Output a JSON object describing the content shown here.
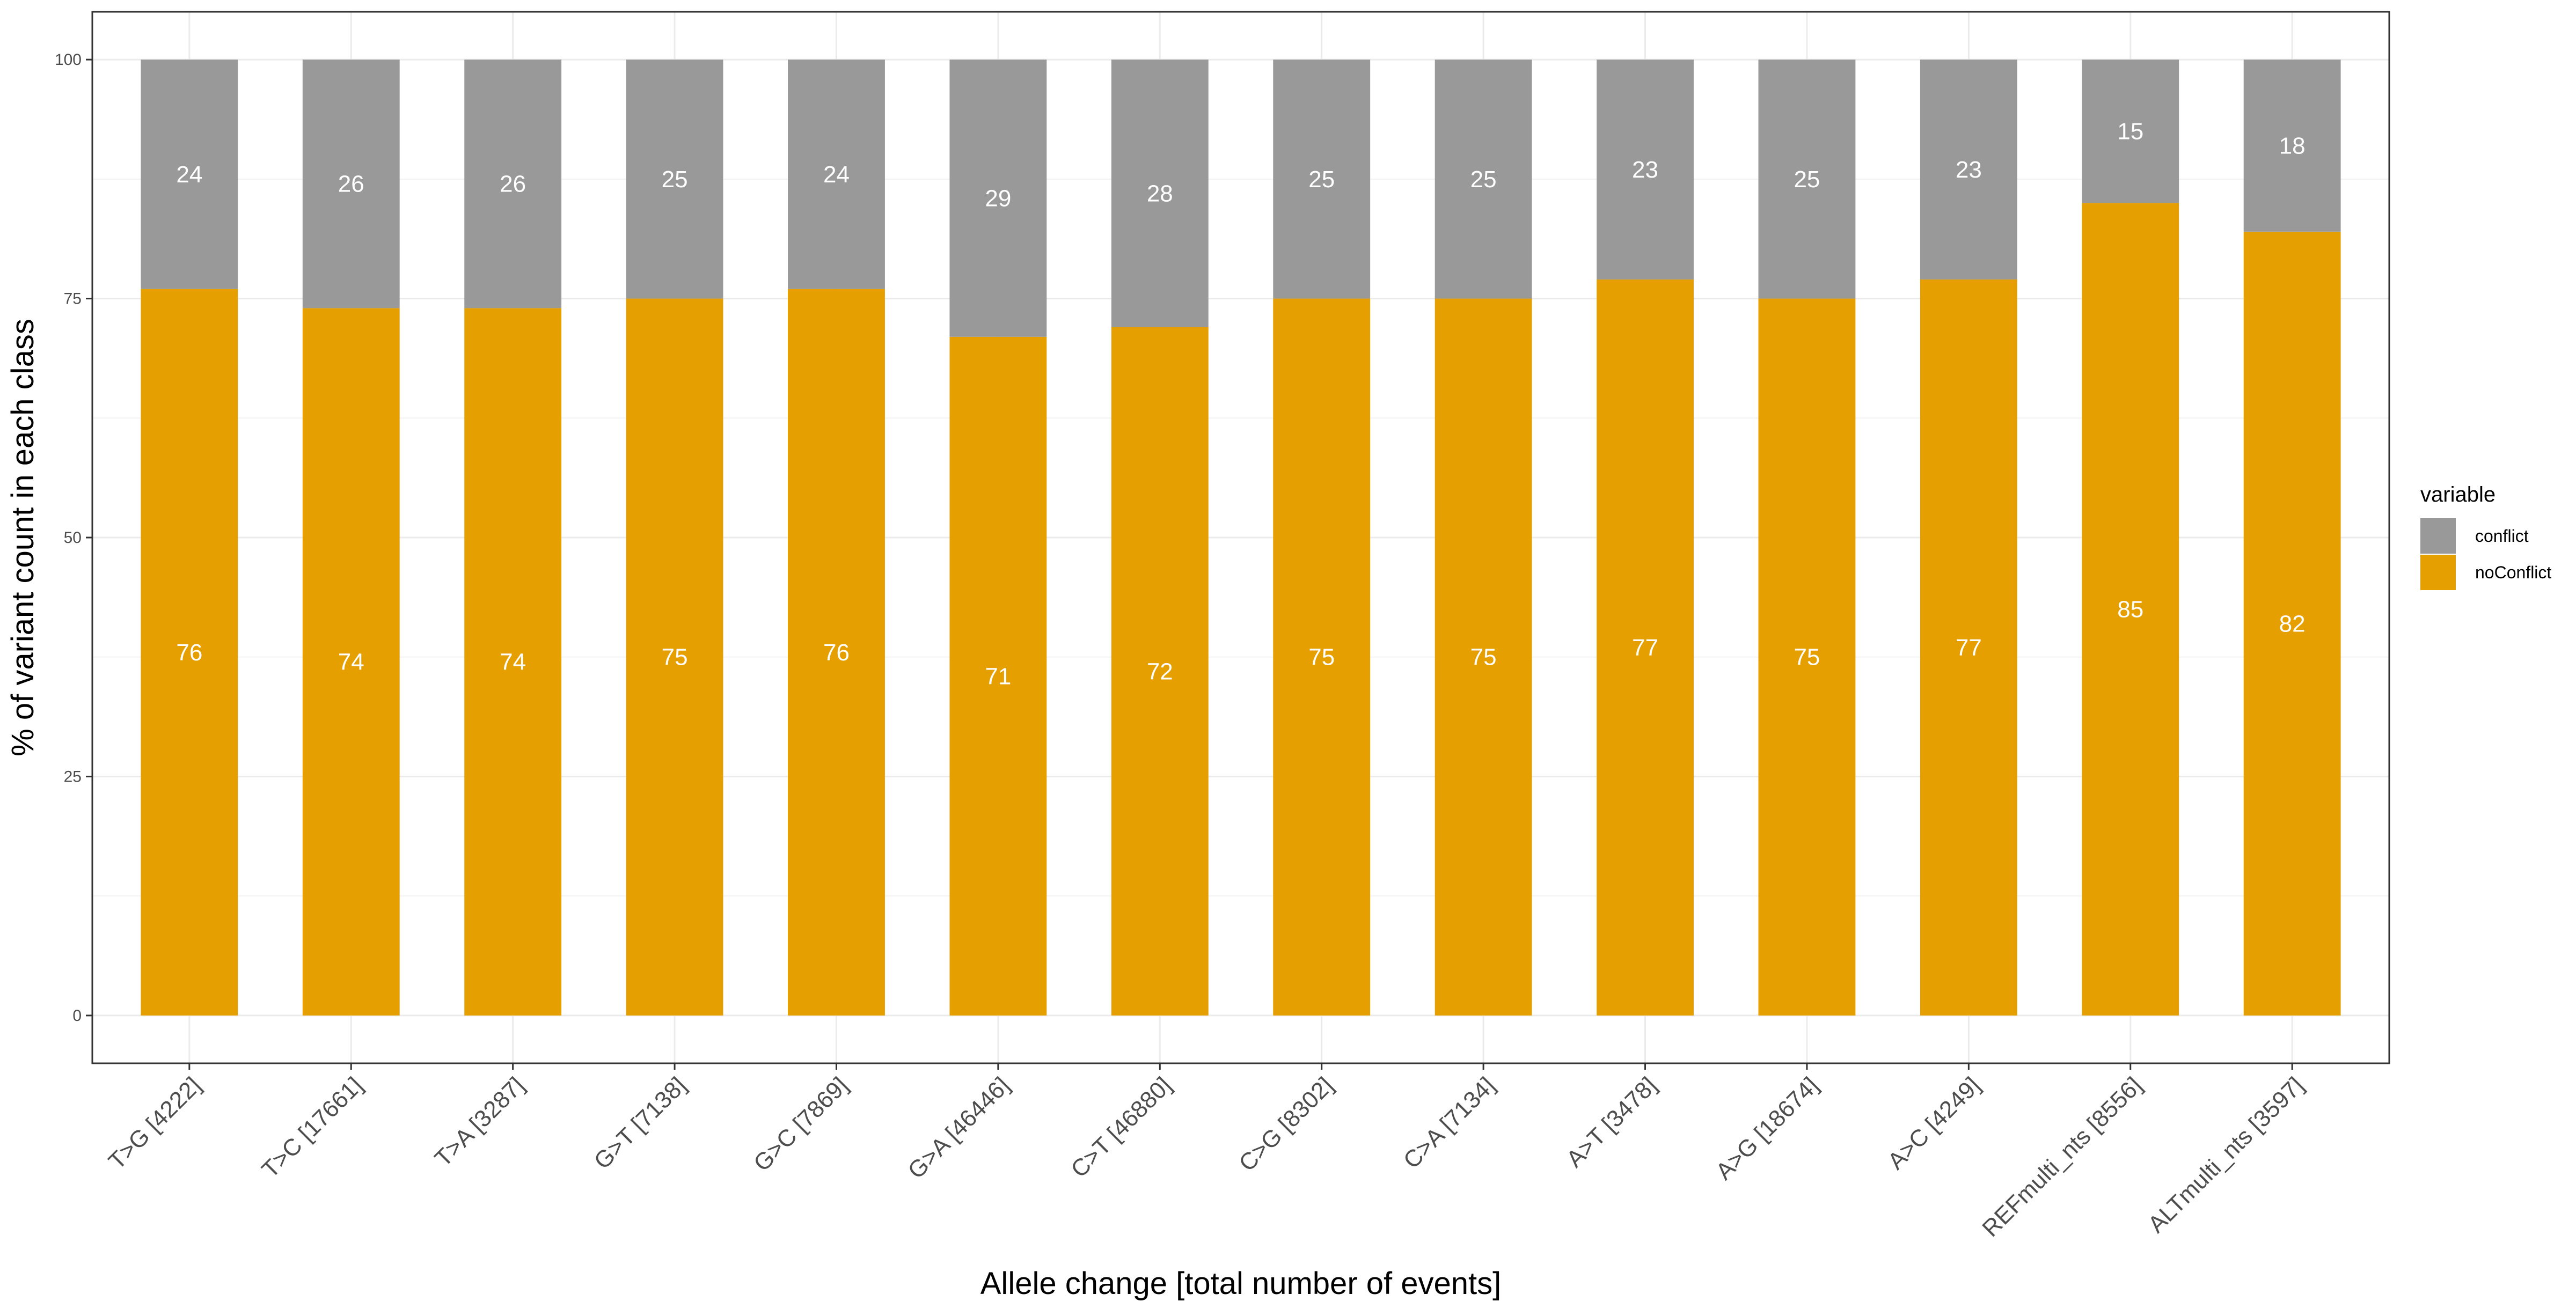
{
  "chart_data": {
    "type": "bar",
    "stacked": true,
    "xlabel": "Allele change [total number of events]",
    "ylabel": "% of variant count in each class",
    "ylim": [
      -5,
      105
    ],
    "yticks": [
      0,
      25,
      50,
      75,
      100
    ],
    "categories": [
      "T>G [4222]",
      "T>C [17661]",
      "T>A [3287]",
      "G>T [7138]",
      "G>C [7869]",
      "G>A [46446]",
      "C>T [46880]",
      "C>G [8302]",
      "C>A [7134]",
      "A>T [3478]",
      "A>G [18674]",
      "A>C [4249]",
      "REFmulti_nts [8556]",
      "ALTmulti_nts [3597]"
    ],
    "series": [
      {
        "name": "noConflict",
        "color": "#E69F00",
        "values": [
          76,
          74,
          74,
          75,
          76,
          71,
          72,
          75,
          75,
          77,
          75,
          77,
          85,
          82
        ]
      },
      {
        "name": "conflict",
        "color": "#999999",
        "values": [
          24,
          26,
          26,
          25,
          24,
          29,
          28,
          25,
          25,
          23,
          25,
          23,
          15,
          18
        ]
      }
    ],
    "legend": {
      "title": "variable",
      "position": "right",
      "order": [
        "conflict",
        "noConflict"
      ]
    },
    "grid": true
  }
}
